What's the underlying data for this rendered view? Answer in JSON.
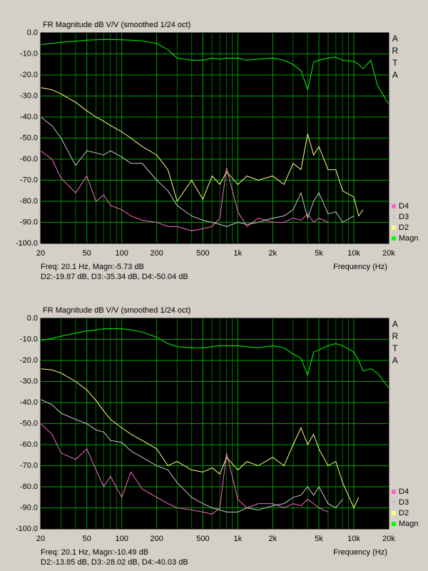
{
  "chart_data": [
    {
      "type": "line",
      "title": "FR Magnitude dB V/V (smoothed 1/24 oct)",
      "side_label": "ARTA",
      "x_label": "Frequency (Hz)",
      "cursor_readout": [
        "Freq: 20.1 Hz, Magn:-5.73 dB",
        "D2:-19.87 dB, D3:-35.34 dB, D4:-50.04 dB"
      ],
      "xscale": "log",
      "grid": true,
      "legend": "lower-right-outside",
      "xlim": [
        20,
        20000
      ],
      "xticks": [
        20,
        50,
        100,
        200,
        500,
        {
          "value": 1000,
          "label": "1k"
        },
        {
          "value": 2000,
          "label": "2k"
        },
        {
          "value": 5000,
          "label": "5k"
        },
        {
          "value": 10000,
          "label": "10k"
        },
        {
          "value": 20000,
          "label": "20k"
        }
      ],
      "minor_xticks": [
        30,
        40,
        60,
        70,
        80,
        90,
        300,
        400,
        600,
        700,
        800,
        900,
        3000,
        4000,
        6000,
        7000,
        8000,
        9000
      ],
      "ylim": [
        -100,
        0
      ],
      "yticks": [
        {
          "value": 0,
          "label": "0.0"
        },
        {
          "value": -10,
          "label": "-10.0"
        },
        {
          "value": -20,
          "label": "-20.0"
        },
        {
          "value": -30,
          "label": "-30.0"
        },
        {
          "value": -40,
          "label": "-40.0"
        },
        {
          "value": -50,
          "label": "-50.0"
        },
        {
          "value": -60,
          "label": "-60.0"
        },
        {
          "value": -70,
          "label": "-70.0"
        },
        {
          "value": -80,
          "label": "-80.0"
        },
        {
          "value": -90,
          "label": "-90.0"
        },
        {
          "value": -100,
          "label": "-100.0"
        }
      ],
      "x": [
        20,
        25,
        30,
        40,
        50,
        60,
        70,
        80,
        100,
        120,
        150,
        200,
        250,
        300,
        400,
        500,
        600,
        700,
        800,
        1000,
        1200,
        1500,
        2000,
        2500,
        3000,
        3500,
        4000,
        4500,
        5000,
        6000,
        7000,
        8000,
        10000,
        11000,
        12000,
        14000,
        16000,
        20000
      ],
      "series": [
        {
          "name": "D4",
          "color": "#ff66cc",
          "values": [
            -56,
            -60,
            -69,
            -76,
            -68,
            -80,
            -77,
            -82,
            -84,
            -87,
            -89,
            -90,
            -92,
            -92,
            -94,
            -93,
            -92,
            -88,
            -64,
            -85,
            -92,
            -88,
            -90,
            -90,
            -88,
            -89,
            -86,
            -90,
            -88,
            -90,
            null,
            null,
            null,
            null,
            null,
            null,
            null,
            null
          ]
        },
        {
          "name": "D3",
          "color": "#c8c8c8",
          "values": [
            -40,
            -44,
            -50,
            -63,
            -56,
            -57,
            -58,
            -56,
            -59,
            -62,
            -62,
            -70,
            -75,
            -82,
            -87,
            -89,
            -90,
            -91,
            -92,
            -90,
            -91,
            -90,
            -88,
            -87,
            -84,
            -76,
            -88,
            -80,
            -76,
            -86,
            -85,
            -90,
            -87,
            null,
            null,
            null,
            null,
            null
          ]
        },
        {
          "name": "D2",
          "color": "#ffff80",
          "values": [
            -26,
            -27,
            -29,
            -33,
            -37,
            -40,
            -42,
            -44,
            -47,
            -50,
            -54,
            -58,
            -65,
            -80,
            -70,
            -79,
            -68,
            -72,
            -66,
            -72,
            -68,
            -70,
            -68,
            -72,
            -62,
            -65,
            -48,
            -58,
            -54,
            -65,
            -65,
            -75,
            -78,
            -87,
            -84,
            null,
            null,
            null
          ]
        },
        {
          "name": "Magn",
          "color": "#00ff00",
          "values": [
            -5.7,
            -5,
            -4.5,
            -4,
            -3.5,
            -3.3,
            -3.2,
            -3.2,
            -3.3,
            -3.5,
            -3.8,
            -5,
            -8,
            -12,
            -13,
            -13,
            -12,
            -12.5,
            -12,
            -12,
            -13,
            -12.5,
            -12,
            -13,
            -15,
            -18,
            -27,
            -14,
            -13,
            -12,
            -11.5,
            -13,
            -13.5,
            -15,
            -17,
            -13,
            -25,
            -34
          ]
        }
      ]
    },
    {
      "type": "line",
      "title": "FR Magnitude dB V/V (smoothed 1/24 oct)",
      "side_label": "ARTA",
      "x_label": "Frequency (Hz)",
      "cursor_readout": [
        "Freq: 20.1 Hz, Magn:-10.49 dB",
        "D2:-13.85 dB, D3:-28.02 dB, D4:-40.03 dB"
      ],
      "xscale": "log",
      "grid": true,
      "legend": "lower-right-outside",
      "xlim": [
        20,
        20000
      ],
      "xticks": [
        20,
        50,
        100,
        200,
        500,
        {
          "value": 1000,
          "label": "1k"
        },
        {
          "value": 2000,
          "label": "2k"
        },
        {
          "value": 5000,
          "label": "5k"
        },
        {
          "value": 10000,
          "label": "10k"
        },
        {
          "value": 20000,
          "label": "20k"
        }
      ],
      "minor_xticks": [
        30,
        40,
        60,
        70,
        80,
        90,
        300,
        400,
        600,
        700,
        800,
        900,
        3000,
        4000,
        6000,
        7000,
        8000,
        9000
      ],
      "ylim": [
        -100,
        0
      ],
      "yticks": [
        {
          "value": 0,
          "label": "0.0"
        },
        {
          "value": -10,
          "label": "-10.0"
        },
        {
          "value": -20,
          "label": "-20.0"
        },
        {
          "value": -30,
          "label": "-30.0"
        },
        {
          "value": -40,
          "label": "-40.0"
        },
        {
          "value": -50,
          "label": "-50.0"
        },
        {
          "value": -60,
          "label": "-60.0"
        },
        {
          "value": -70,
          "label": "-70.0"
        },
        {
          "value": -80,
          "label": "-80.0"
        },
        {
          "value": -90,
          "label": "-90.0"
        },
        {
          "value": -100,
          "label": "-100.0"
        }
      ],
      "x": [
        20,
        25,
        30,
        40,
        50,
        60,
        70,
        80,
        100,
        120,
        150,
        200,
        250,
        300,
        400,
        500,
        600,
        700,
        800,
        1000,
        1200,
        1500,
        2000,
        2500,
        3000,
        3500,
        4000,
        4500,
        5000,
        6000,
        7000,
        8000,
        10000,
        11000,
        12000,
        14000,
        16000,
        20000
      ],
      "series": [
        {
          "name": "D4",
          "color": "#ff66cc",
          "values": [
            -50,
            -55,
            -64,
            -67,
            -62,
            -72,
            -80,
            -75,
            -85,
            -73,
            -81,
            -85,
            -88,
            -90,
            -91,
            -92,
            -93,
            -90,
            -64,
            -86,
            -90,
            -88,
            -88,
            -90,
            -88,
            -89,
            -86,
            -88,
            -90,
            -92,
            null,
            null,
            null,
            null,
            null,
            null,
            null,
            null
          ]
        },
        {
          "name": "D3",
          "color": "#c8c8c8",
          "values": [
            -38.5,
            -41,
            -45,
            -48,
            -50,
            -53,
            -54,
            -58,
            -59,
            -63,
            -66,
            -70,
            -72,
            -78,
            -85,
            -88,
            -90,
            -91,
            -92,
            -92,
            -90,
            -91,
            -89,
            -88,
            -85,
            -84,
            -80,
            -84,
            -80,
            -88,
            -90,
            -86,
            null,
            null,
            null,
            null,
            null,
            null
          ]
        },
        {
          "name": "D2",
          "color": "#ffff80",
          "values": [
            -24,
            -24.5,
            -26,
            -30,
            -34,
            -39,
            -44,
            -48,
            -52,
            -55,
            -58,
            -62,
            -70,
            -68,
            -72,
            -73,
            -71,
            -74,
            -66,
            -72,
            -68,
            -70,
            -66,
            -70,
            -60,
            -52,
            -60,
            -55,
            -62,
            -70,
            -68,
            -78,
            -90,
            -85,
            null,
            null,
            null,
            null
          ]
        },
        {
          "name": "Magn",
          "color": "#00ff00",
          "values": [
            -10.5,
            -9.5,
            -8.5,
            -7,
            -6,
            -5.5,
            -5,
            -4.8,
            -5,
            -5.5,
            -6.5,
            -9,
            -12,
            -13.5,
            -14,
            -14,
            -13.5,
            -13,
            -13,
            -13,
            -13.5,
            -14,
            -13,
            -14,
            -17,
            -19,
            -27,
            -16,
            -15,
            -13,
            -12,
            -13,
            -16,
            -20,
            -25,
            -24,
            -26,
            -33
          ]
        }
      ]
    }
  ]
}
